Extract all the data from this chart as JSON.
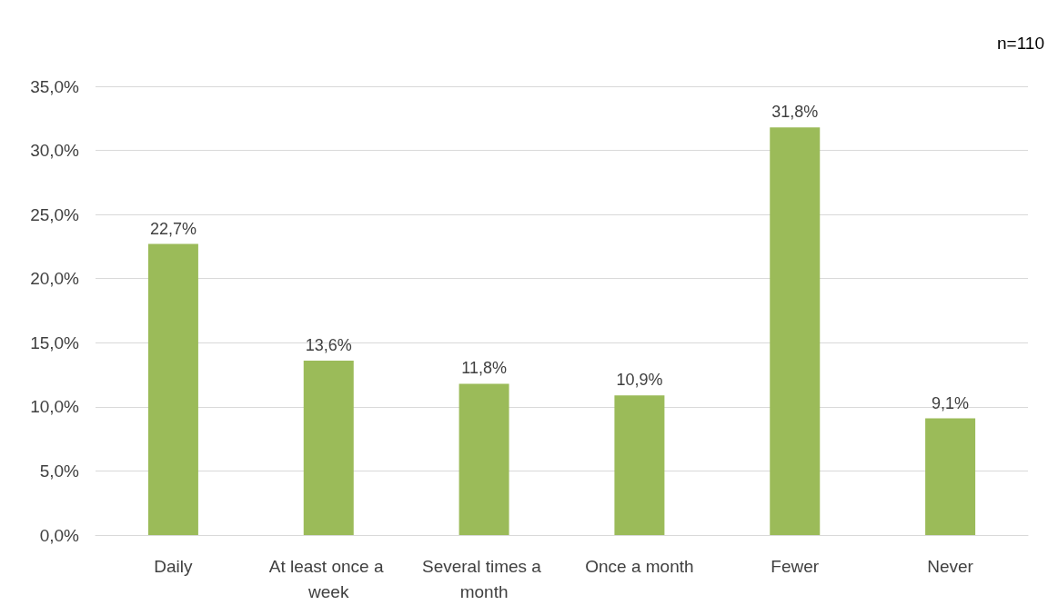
{
  "chart_data": {
    "type": "bar",
    "categories": [
      "Daily",
      "At least once a week",
      "Several times a month",
      "Once a month",
      "Fewer",
      "Never"
    ],
    "values": [
      22.7,
      13.6,
      11.8,
      10.9,
      31.8,
      9.1
    ],
    "value_labels": [
      "22,7%",
      "13,6%",
      "11,8%",
      "10,9%",
      "31,8%",
      "9,1%"
    ],
    "color": "#9bbb59",
    "ylim": [
      0,
      35
    ],
    "yticks": [
      {
        "value": 0,
        "label": "0,0%"
      },
      {
        "value": 5,
        "label": "5,0%"
      },
      {
        "value": 10,
        "label": "10,0%"
      },
      {
        "value": 15,
        "label": "15,0%"
      },
      {
        "value": 20,
        "label": "20,0%"
      },
      {
        "value": 25,
        "label": "25,0%"
      },
      {
        "value": 30,
        "label": "30,0%"
      },
      {
        "value": 35,
        "label": "35,0%"
      }
    ],
    "grid": "y",
    "annotations": [
      "n=110"
    ]
  }
}
